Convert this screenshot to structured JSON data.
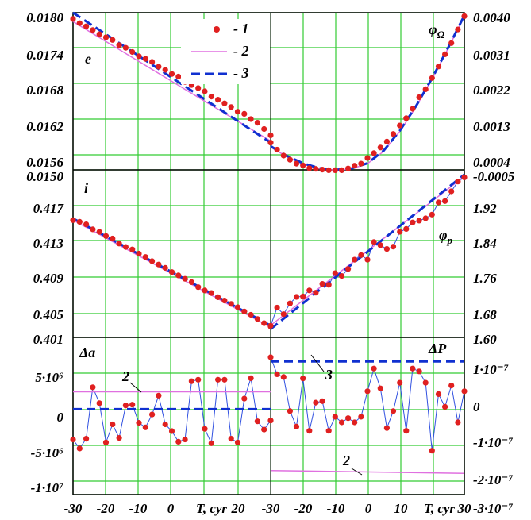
{
  "colors": {
    "series1": "#e02020",
    "series2": "#e070e0",
    "series3": "#1030d0",
    "grid": "#33cc33",
    "connector": "#3050e0",
    "axis": "#000000"
  },
  "legend": {
    "items": [
      {
        "marker": "dot",
        "text": "- 1"
      },
      {
        "marker": "line",
        "text": "- 2"
      },
      {
        "marker": "dash",
        "text": "- 3"
      }
    ]
  },
  "chart_data": [
    {
      "id": "e",
      "type": "line",
      "panel": "top-left",
      "label": "e",
      "xlim": [
        -30,
        30
      ],
      "ylim": [
        0.015,
        0.018
      ],
      "y_ticks": [
        "0.0180",
        "0.0174",
        "0.0168",
        "0.0162",
        "0.0156",
        "0.0150"
      ],
      "series": [
        {
          "id": "1",
          "kind": "points",
          "x": [
            -30,
            -28,
            -26,
            -24,
            -22,
            -20,
            -18,
            -16,
            -14,
            -12,
            -10,
            -8,
            -6,
            -4,
            -2,
            0,
            2,
            4,
            6,
            8,
            10,
            12,
            14,
            16,
            18,
            20,
            22,
            24,
            26,
            28,
            30
          ],
          "y": [
            0.01788,
            0.0178,
            0.01774,
            0.01767,
            0.01759,
            0.01753,
            0.01748,
            0.01738,
            0.01733,
            0.01725,
            0.01717,
            0.01712,
            0.01706,
            0.01697,
            0.01691,
            0.01683,
            0.01678,
            0.01668,
            0.01662,
            0.01656,
            0.0165,
            0.0164,
            0.01634,
            0.01627,
            0.0162,
            0.01611,
            0.01607,
            0.01597,
            0.0159,
            0.01578,
            0.01566
          ]
        },
        {
          "id": "2",
          "kind": "line",
          "x": [
            -30,
            30
          ],
          "y": [
            0.01783,
            0.01555
          ]
        },
        {
          "id": "3",
          "kind": "dash",
          "x": [
            -30,
            30
          ],
          "y": [
            0.018,
            0.01552
          ]
        }
      ]
    },
    {
      "id": "phi_omega",
      "type": "line",
      "panel": "top-right",
      "label": "φΩ",
      "xlim": [
        -30,
        30
      ],
      "ylim": [
        -0.0005,
        0.004
      ],
      "y_ticks": [
        "0.0040",
        "0.0031",
        "0.0022",
        "0.0013",
        "0.0004",
        "-0.0005"
      ],
      "series": [
        {
          "id": "1",
          "kind": "points",
          "x": [
            -30,
            -28,
            -26,
            -24,
            -22,
            -20,
            -18,
            -16,
            -14,
            -12,
            -10,
            -8,
            -6,
            -4,
            -2,
            0,
            2,
            4,
            6,
            8,
            10,
            12,
            14,
            16,
            18,
            20,
            22,
            24,
            26,
            28,
            30
          ],
          "y": [
            0.00028,
            8e-05,
            -9e-05,
            -0.00021,
            -0.00032,
            -0.00037,
            -0.00045,
            -0.00047,
            -0.00049,
            -0.00051,
            -0.00051,
            -0.00051,
            -0.00046,
            -0.00038,
            -0.00032,
            -0.00016,
            -2e-05,
            0.00014,
            0.00031,
            0.00053,
            0.00077,
            0.00098,
            0.00125,
            0.00158,
            0.00181,
            0.00213,
            0.00246,
            0.00281,
            0.00313,
            0.00352,
            0.0039
          ]
        },
        {
          "id": "2",
          "kind": "line",
          "x": [
            -30,
            -25,
            -20,
            -15,
            -10,
            -5,
            0,
            5,
            10,
            15,
            20,
            25,
            30
          ],
          "y": [
            0.00015,
            -0.00012,
            -0.00033,
            -0.00046,
            -0.00051,
            -0.00047,
            -0.00032,
            3e-05,
            0.0006,
            0.0013,
            0.0021,
            0.00298,
            0.0039
          ]
        },
        {
          "id": "3",
          "kind": "dash",
          "x": [
            -30,
            -25,
            -20,
            -15,
            -10,
            -5,
            0,
            5,
            10,
            15,
            20,
            25,
            30
          ],
          "y": [
            0.00018,
            -0.0001,
            -0.00031,
            -0.00045,
            -0.0005,
            -0.00046,
            -0.00031,
            5e-05,
            0.00062,
            0.00132,
            0.00212,
            0.003,
            0.00392
          ]
        }
      ]
    },
    {
      "id": "i",
      "type": "line",
      "panel": "middle-left",
      "label": "i",
      "xlim": [
        -30,
        30
      ],
      "ylim": [
        0.401,
        0.421
      ],
      "y_ticks": [
        "0.417",
        "0.413",
        "0.409",
        "0.405",
        "0.401"
      ],
      "series": [
        {
          "id": "1",
          "kind": "points",
          "x": [
            -30,
            -28,
            -26,
            -24,
            -22,
            -20,
            -18,
            -16,
            -14,
            -12,
            -10,
            -8,
            -6,
            -4,
            -2,
            0,
            2,
            4,
            6,
            8,
            10,
            12,
            14,
            16,
            18,
            20,
            22,
            24,
            26,
            28,
            30
          ],
          "y": [
            0.415,
            0.4148,
            0.4145,
            0.4139,
            0.4136,
            0.4131,
            0.4128,
            0.4122,
            0.4118,
            0.4115,
            0.411,
            0.4106,
            0.4101,
            0.4097,
            0.4093,
            0.4088,
            0.4084,
            0.408,
            0.4076,
            0.407,
            0.4066,
            0.4063,
            0.4058,
            0.4054,
            0.405,
            0.4046,
            0.4041,
            0.4037,
            0.4032,
            0.4027,
            0.4023
          ]
        },
        {
          "id": "2",
          "kind": "line",
          "x": [
            -30,
            30
          ],
          "y": [
            0.415,
            0.4022
          ]
        },
        {
          "id": "3",
          "kind": "dash",
          "x": [
            -30,
            30
          ],
          "y": [
            0.4152,
            0.4024
          ]
        }
      ]
    },
    {
      "id": "phi_p",
      "type": "line",
      "panel": "middle-right",
      "label": "φp",
      "xlim": [
        -30,
        30
      ],
      "ylim": [
        1.6,
        1.96
      ],
      "y_ticks": [
        "1.92",
        "1.84",
        "1.76",
        "1.68",
        "1.60"
      ],
      "series": [
        {
          "id": "1",
          "kind": "points",
          "x": [
            -30,
            -28,
            -26,
            -24,
            -22,
            -20,
            -18,
            -16,
            -14,
            -12,
            -10,
            -8,
            -6,
            -4,
            -2,
            0,
            2,
            4,
            6,
            8,
            10,
            12,
            14,
            16,
            18,
            20,
            22,
            24,
            26,
            28,
            30
          ],
          "y": [
            1.625,
            1.664,
            1.65,
            1.673,
            1.687,
            1.688,
            1.701,
            1.696,
            1.715,
            1.713,
            1.738,
            1.732,
            1.747,
            1.767,
            1.777,
            1.767,
            1.805,
            1.798,
            1.79,
            1.795,
            1.827,
            1.833,
            1.847,
            1.851,
            1.856,
            1.864,
            1.89,
            1.893,
            1.914,
            1.935,
            1.944
          ]
        },
        {
          "id": "2",
          "kind": "line",
          "x": [
            -30,
            30
          ],
          "y": [
            1.626,
            1.946
          ]
        },
        {
          "id": "3",
          "kind": "dash",
          "x": [
            -30,
            30
          ],
          "y": [
            1.618,
            1.95
          ]
        }
      ]
    },
    {
      "id": "delta_a",
      "type": "line",
      "panel": "bottom-left",
      "label": "Δa",
      "xlim": [
        -30,
        30
      ],
      "ylim": [
        -10500000,
        10300000
      ],
      "y_ticks": [
        "5·10⁶",
        "0",
        "-5·10⁶",
        "-1·10⁷"
      ],
      "x_ticks": [
        "-30",
        "-20",
        "-10",
        "0",
        "T, cyr",
        "20"
      ],
      "annotations": [
        {
          "text": "2"
        }
      ],
      "series": [
        {
          "id": "1",
          "kind": "points",
          "x": [
            -30,
            -28,
            -26,
            -24,
            -22,
            -20,
            -18,
            -16,
            -14,
            -12,
            -10,
            -8,
            -6,
            -4,
            -2,
            0,
            2,
            4,
            6,
            8,
            10,
            12,
            14,
            16,
            18,
            20,
            22,
            24,
            26,
            28,
            30
          ],
          "y": [
            -3200000,
            -4400000,
            -3100000,
            3700000,
            1600000,
            -3600000,
            -1200000,
            -3000000,
            1300000,
            1400000,
            -1000000,
            -1600000,
            100000,
            2600000,
            -1200000,
            -2100000,
            -3500000,
            -3200000,
            4500000,
            4700000,
            -1800000,
            -3700000,
            4700000,
            4700000,
            -3100000,
            -3600000,
            2200000,
            4900000,
            -800000,
            -1900000,
            -700000
          ]
        },
        {
          "id": "2",
          "kind": "line",
          "x": [
            -30,
            30
          ],
          "y": [
            3100000,
            3100000
          ]
        },
        {
          "id": "3",
          "kind": "dash",
          "x": [
            -30,
            30
          ],
          "y": [
            800000,
            800000
          ]
        }
      ]
    },
    {
      "id": "delta_p",
      "type": "line",
      "panel": "bottom-right",
      "label": "ΔP",
      "xlim": [
        -30,
        30
      ],
      "ylim": [
        -3.15e-07,
        2.4e-07
      ],
      "y_ticks": [
        "1·10⁻⁷",
        "0",
        "-1·10⁻⁷",
        "-2·10⁻⁷",
        "-3·10⁻⁷"
      ],
      "x_ticks": [
        "-30",
        "-20",
        "-10",
        "0",
        "10",
        "T, cyr",
        "30"
      ],
      "annotations": [
        {
          "text": "3"
        },
        {
          "text": "2"
        }
      ],
      "series": [
        {
          "id": "1",
          "kind": "points",
          "x": [
            -30,
            -28,
            -26,
            -24,
            -22,
            -20,
            -18,
            -16,
            -14,
            -12,
            -10,
            -8,
            -6,
            -4,
            -2,
            0,
            2,
            4,
            6,
            8,
            10,
            12,
            14,
            16,
            18,
            20,
            22,
            24,
            26,
            28,
            30
          ],
          "y": [
            1.7e-07,
            1.1e-07,
            1e-07,
            -2e-08,
            -7.5e-08,
            9.5e-08,
            -9e-08,
            1e-08,
            1.5e-08,
            -9e-08,
            -4e-08,
            -6e-08,
            -4.5e-08,
            -6e-08,
            -4e-08,
            5e-08,
            1.3e-07,
            6e-08,
            -8e-08,
            -2e-08,
            8e-08,
            -9e-08,
            1.3e-07,
            1.2e-07,
            8e-08,
            -1.6e-07,
            4e-08,
            -5e-09,
            7e-08,
            -6e-08,
            5e-08
          ]
        },
        {
          "id": "2",
          "kind": "line",
          "x": [
            -30,
            30
          ],
          "y": [
            -2.3e-07,
            -2.4e-07
          ]
        },
        {
          "id": "3",
          "kind": "dash",
          "x": [
            -30,
            30
          ],
          "y": [
            1.55e-07,
            1.55e-07
          ]
        }
      ]
    }
  ]
}
